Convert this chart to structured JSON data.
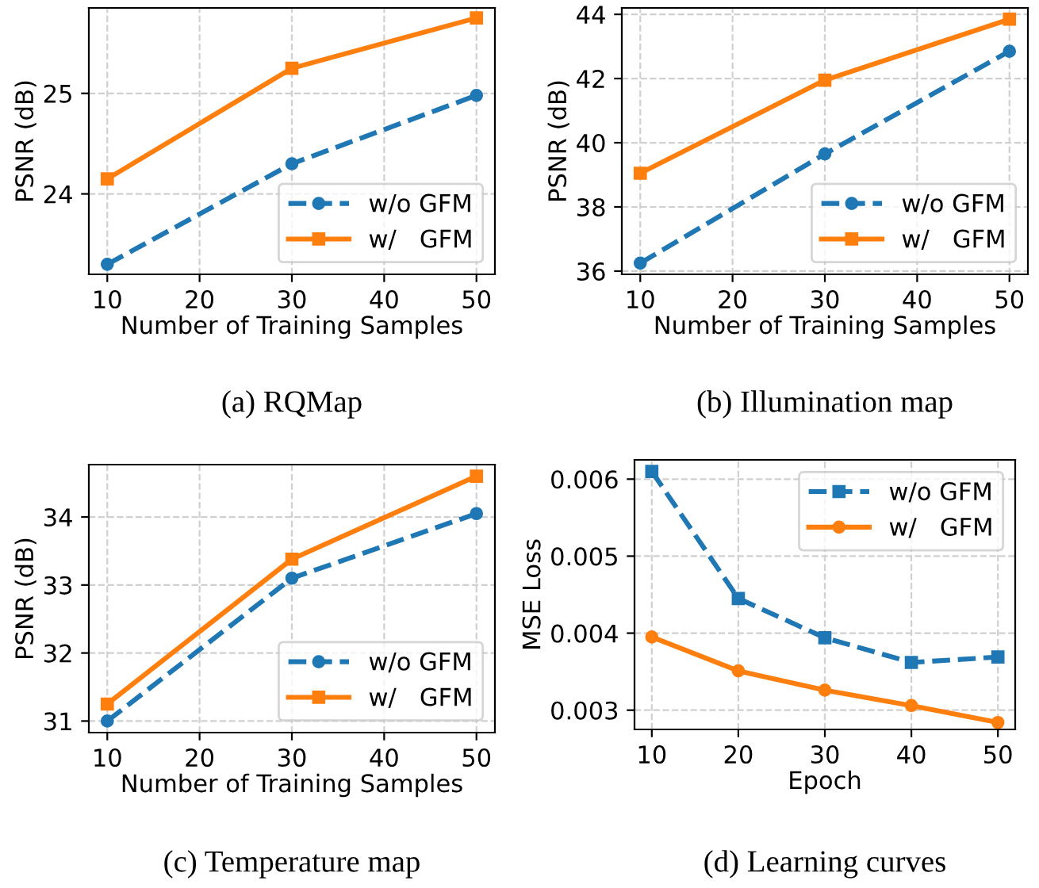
{
  "chart_data": [
    {
      "type": "line",
      "title": "(a) RQMap",
      "xlabel": "Number of Training Samples",
      "ylabel": "PSNR (dB)",
      "x": [
        10,
        30,
        50
      ],
      "xlim": [
        8,
        52
      ],
      "xticks": [
        10,
        20,
        30,
        40,
        50
      ],
      "ylim": [
        23.2,
        25.85
      ],
      "yticks": [
        24,
        25
      ],
      "grid": true,
      "legend": "lower right",
      "series": [
        {
          "name": "w/o GFM",
          "color": "#1f77b4",
          "marker": "circle",
          "line_style": "dashed",
          "values": [
            23.3,
            24.3,
            24.98
          ]
        },
        {
          "name": "w/   GFM",
          "color": "#ff7f0e",
          "marker": "square",
          "line_style": "solid",
          "values": [
            24.15,
            25.25,
            25.75
          ]
        }
      ]
    },
    {
      "type": "line",
      "title": "(b) Illumination map",
      "xlabel": "Number of Training Samples",
      "ylabel": "PSNR (dB)",
      "x": [
        10,
        30,
        50
      ],
      "xlim": [
        8,
        52
      ],
      "xticks": [
        10,
        20,
        30,
        40,
        50
      ],
      "ylim": [
        35.9,
        44.2
      ],
      "yticks": [
        36,
        38,
        40,
        42,
        44
      ],
      "grid": true,
      "legend": "lower right",
      "series": [
        {
          "name": "w/o GFM",
          "color": "#1f77b4",
          "marker": "circle",
          "line_style": "dashed",
          "values": [
            36.25,
            39.65,
            42.85
          ]
        },
        {
          "name": "w/   GFM",
          "color": "#ff7f0e",
          "marker": "square",
          "line_style": "solid",
          "values": [
            39.05,
            41.95,
            43.85
          ]
        }
      ]
    },
    {
      "type": "line",
      "title": "(c) Temperature map",
      "xlabel": "Number of Training Samples",
      "ylabel": "PSNR (dB)",
      "x": [
        10,
        30,
        50
      ],
      "xlim": [
        8,
        52
      ],
      "xticks": [
        10,
        20,
        30,
        40,
        50
      ],
      "ylim": [
        30.83,
        34.77
      ],
      "yticks": [
        31,
        32,
        33,
        34
      ],
      "grid": true,
      "legend": "lower right",
      "series": [
        {
          "name": "w/o GFM",
          "color": "#1f77b4",
          "marker": "circle",
          "line_style": "dashed",
          "values": [
            31.0,
            33.1,
            34.05
          ]
        },
        {
          "name": "w/   GFM",
          "color": "#ff7f0e",
          "marker": "square",
          "line_style": "solid",
          "values": [
            31.25,
            33.38,
            34.6
          ]
        }
      ]
    },
    {
      "type": "line",
      "title": "(d) Learning curves",
      "xlabel": "Epoch",
      "ylabel": "MSE Loss",
      "x": [
        10,
        20,
        30,
        40,
        50
      ],
      "xlim": [
        8,
        52
      ],
      "xticks": [
        10,
        20,
        30,
        40,
        50
      ],
      "ylim": [
        0.00275,
        0.00625
      ],
      "yticks": [
        0.003,
        0.004,
        0.005,
        0.006
      ],
      "grid": true,
      "legend": "upper right",
      "series": [
        {
          "name": "w/o GFM",
          "color": "#1f77b4",
          "marker": "square",
          "line_style": "dashed",
          "values": [
            0.0061,
            0.00445,
            0.00394,
            0.00362,
            0.00369
          ]
        },
        {
          "name": "w/   GFM",
          "color": "#ff7f0e",
          "marker": "circle",
          "line_style": "solid",
          "values": [
            0.00395,
            0.00351,
            0.00326,
            0.00306,
            0.00284
          ]
        }
      ]
    }
  ]
}
